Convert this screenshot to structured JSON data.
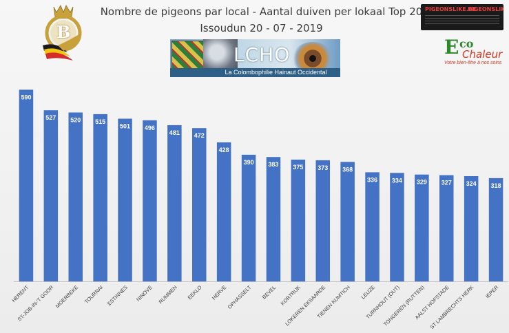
{
  "header": {
    "title": "Nombre de pigeons par local - Aantal duiven per lokaal  Top 20",
    "subtitle": "Issoudun 20 - 07 - 2019"
  },
  "logos": {
    "belgian_b_letter": "B",
    "pigeon_site_1": "PIGEONSLIKE.BE",
    "pigeon_site_2": "PIGEONSLIKE.BE",
    "eco_e": "E",
    "eco_co": "co",
    "eco_chaleur": "Chaleur",
    "eco_tagline": "Votre bien-être à nos soins",
    "banner_title": "LCHO",
    "banner_subtitle": "La Colombophilie Hainaut Occidental"
  },
  "colors": {
    "bar": "#4472c4",
    "axis": "#bfbfbf",
    "gold": "#c9a13b"
  },
  "chart_data": {
    "type": "bar",
    "title": "Nombre de pigeons par local - Aantal duiven per lokaal  Top 20",
    "subtitle": "Issoudun 20 - 07 - 2019",
    "categories": [
      "HERENT",
      "ST-JOB-IN-'T GOOR",
      "MOERBEKE",
      "TOURNAI",
      "ESTINNES",
      "NINOVE",
      "RUMMEN",
      "EEKLO",
      "HERVE",
      "OPHASSELT",
      "BEVEL",
      "KORTRIJK",
      "LOKEREN EKSAARDE",
      "TIENEN KUMTICH",
      "LEUZE",
      "TURNHOUT (OUT)",
      "TONGEREN (RUTTEN)",
      "AALST HOFSTADE",
      "ST LAMBRECHTS HERK",
      "IEPER"
    ],
    "values": [
      590,
      527,
      520,
      515,
      501,
      496,
      481,
      472,
      428,
      390,
      383,
      375,
      373,
      368,
      336,
      334,
      329,
      327,
      324,
      318
    ],
    "data_labels": [
      "590",
      "527",
      "520",
      "515",
      "501",
      "496",
      "481",
      "472",
      "428",
      "390",
      "383",
      "375",
      "373",
      "368",
      "336",
      "334",
      "329",
      "327",
      "324",
      "318"
    ],
    "ylim": [
      0,
      610
    ],
    "grid": false,
    "legend": "none"
  }
}
